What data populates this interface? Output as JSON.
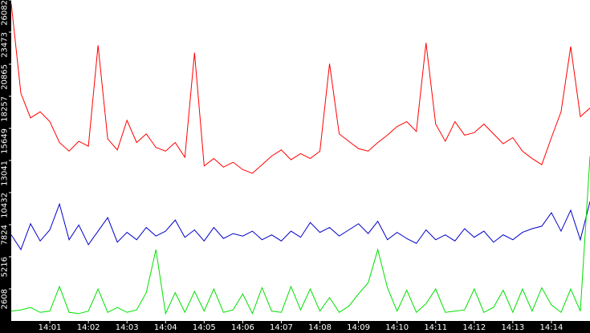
{
  "chart_data": {
    "type": "line",
    "x": [
      840,
      840.25,
      840.5,
      840.75,
      841,
      841.25,
      841.5,
      841.75,
      842,
      842.25,
      842.5,
      842.75,
      843,
      843.25,
      843.5,
      843.75,
      844,
      844.25,
      844.5,
      844.75,
      845,
      845.25,
      845.5,
      845.75,
      846,
      846.25,
      846.5,
      846.75,
      847,
      847.25,
      847.5,
      847.75,
      848,
      848.25,
      848.5,
      848.75,
      849,
      849.25,
      849.5,
      849.75,
      850,
      850.25,
      850.5,
      850.75,
      851,
      851.25,
      851.5,
      851.75,
      852,
      852.25,
      852.5,
      852.75,
      853,
      853.25,
      853.5,
      853.75,
      854,
      854.25,
      854.5,
      854.75,
      855
    ],
    "series": [
      {
        "color": "#ff0000",
        "values": [
          25800,
          18500,
          16500,
          17000,
          16200,
          14500,
          13800,
          14600,
          14200,
          22400,
          14800,
          13900,
          16300,
          14500,
          15200,
          14100,
          13800,
          14500,
          13300,
          21800,
          12600,
          13200,
          12500,
          12900,
          12300,
          12000,
          12700,
          13400,
          13900,
          13100,
          13600,
          13200,
          13800,
          20900,
          15200,
          14600,
          14000,
          13800,
          14500,
          15100,
          15800,
          16200,
          15400,
          22600,
          16000,
          14600,
          16200,
          15100,
          15300,
          16000,
          15200,
          14400,
          14900,
          13800,
          13200,
          12700,
          14900,
          17000,
          22300,
          16600,
          17300
        ]
      },
      {
        "color": "#0000cc",
        "values": [
          7000,
          5800,
          7900,
          6500,
          7400,
          9500,
          6600,
          7800,
          6200,
          7300,
          8400,
          6400,
          7200,
          6600,
          7600,
          6900,
          7300,
          8200,
          6800,
          7400,
          6500,
          7600,
          6700,
          7100,
          6900,
          7300,
          6600,
          7000,
          6500,
          7300,
          6800,
          8000,
          7200,
          7600,
          6900,
          7400,
          7900,
          7100,
          8100,
          6600,
          7200,
          6700,
          6300,
          7400,
          6600,
          7000,
          6500,
          7500,
          6800,
          7300,
          6400,
          7000,
          6600,
          7200,
          7500,
          7700,
          8800,
          7300,
          9000,
          6600,
          9700
        ]
      },
      {
        "color": "#00e000",
        "values": [
          800,
          900,
          1100,
          700,
          800,
          2800,
          700,
          600,
          800,
          2600,
          700,
          1100,
          700,
          900,
          2300,
          5800,
          600,
          2300,
          700,
          2400,
          800,
          2600,
          700,
          900,
          2200,
          600,
          2700,
          800,
          700,
          2800,
          900,
          2600,
          800,
          1900,
          700,
          1200,
          2200,
          3100,
          5800,
          2700,
          800,
          2500,
          700,
          1400,
          2600,
          700,
          800,
          900,
          2600,
          700,
          1100,
          2500,
          700,
          2600,
          800,
          2700,
          1300,
          700,
          2600,
          800,
          13400
        ]
      }
    ],
    "xlim": [
      840,
      855
    ],
    "xticks": [
      {
        "value": 841,
        "label": "14:01"
      },
      {
        "value": 842,
        "label": "14:02"
      },
      {
        "value": 843,
        "label": "14:03"
      },
      {
        "value": 844,
        "label": "14:04"
      },
      {
        "value": 845,
        "label": "14:05"
      },
      {
        "value": 846,
        "label": "14:06"
      },
      {
        "value": 847,
        "label": "14:07"
      },
      {
        "value": 848,
        "label": "14:08"
      },
      {
        "value": 849,
        "label": "14:09"
      },
      {
        "value": 850,
        "label": "14:10"
      },
      {
        "value": 851,
        "label": "14:11"
      },
      {
        "value": 852,
        "label": "14:12"
      },
      {
        "value": 853,
        "label": "14:13"
      },
      {
        "value": 854,
        "label": "14:14"
      }
    ],
    "ylim": [
      0,
      26082
    ],
    "yticks": [
      2608,
      5216,
      7824,
      10432,
      13041,
      15649,
      18257,
      20865,
      23473,
      26082
    ]
  }
}
